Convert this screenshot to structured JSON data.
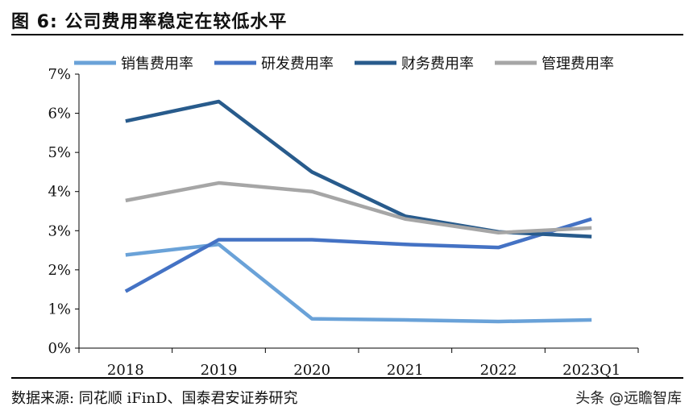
{
  "figure": {
    "title": "图 6:  公司费用率稳定在较低水平",
    "source": "数据来源:  同花顺 iFinD、国泰君安证券研究",
    "watermark": "头条 @远瞻智库"
  },
  "colors": {
    "销售费用率": "#6aa2d8",
    "研发费用率": "#4472c4",
    "财务费用率": "#285b8c",
    "管理费用率": "#a6a6a6",
    "axis": "#000000"
  },
  "chart_data": {
    "type": "line",
    "title": "",
    "xlabel": "",
    "ylabel": "",
    "categories": [
      "2018",
      "2019",
      "2020",
      "2021",
      "2022",
      "2023Q1"
    ],
    "ylim": [
      0,
      7
    ],
    "yticks": [
      0,
      1,
      2,
      3,
      4,
      5,
      6,
      7
    ],
    "ytick_labels": [
      "0%",
      "1%",
      "2%",
      "3%",
      "4%",
      "5%",
      "6%",
      "7%"
    ],
    "grid": false,
    "legend_position": "top",
    "series": [
      {
        "name": "销售费用率",
        "values": [
          2.38,
          2.65,
          0.75,
          0.72,
          0.68,
          0.72
        ]
      },
      {
        "name": "研发费用率",
        "values": [
          1.45,
          2.77,
          2.77,
          2.65,
          2.57,
          3.3
        ]
      },
      {
        "name": "财务费用率",
        "values": [
          5.8,
          6.3,
          4.5,
          3.37,
          2.97,
          2.85
        ]
      },
      {
        "name": "管理费用率",
        "values": [
          3.77,
          4.22,
          4.0,
          3.3,
          2.95,
          3.07
        ]
      }
    ]
  }
}
